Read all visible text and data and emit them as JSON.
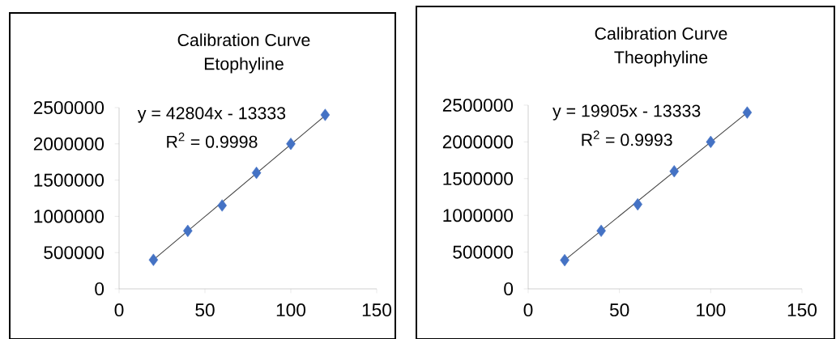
{
  "chart_data": [
    {
      "type": "scatter",
      "title": "Calibration Curve",
      "subtitle": "Etophyline",
      "marker": "diamond",
      "grid": false,
      "xlim": [
        0,
        150
      ],
      "xticks": [
        0,
        50,
        100,
        150
      ],
      "ylim": [
        0,
        2500000
      ],
      "yticks": [
        0,
        500000,
        1000000,
        1500000,
        2000000,
        2500000
      ],
      "annotations": [
        "y = 42804x - 13333",
        "R$^{2}$ = 0.9998"
      ],
      "series": [
        {
          "color": "#4472c4",
          "x": [
            20,
            40,
            60,
            80,
            100,
            120
          ],
          "values": [
            400000,
            800000,
            1150000,
            1600000,
            2000000,
            2400000
          ]
        },
        {
          "type": "line",
          "marker": "none",
          "color": "#404040",
          "x": [
            20,
            120
          ],
          "values": [
            400000,
            2390000
          ]
        }
      ]
    },
    {
      "type": "scatter",
      "title": "Calibration Curve",
      "subtitle": "Theophyline",
      "marker": "diamond",
      "grid": false,
      "xlim": [
        0,
        150
      ],
      "xticks": [
        0,
        50,
        100,
        150
      ],
      "ylim": [
        0,
        2500000
      ],
      "yticks": [
        0,
        500000,
        1000000,
        1500000,
        2000000,
        2500000
      ],
      "annotations": [
        "y = 19905x - 13333",
        "R$^{2}$ = 0.9993"
      ],
      "series": [
        {
          "color": "#4472c4",
          "x": [
            20,
            40,
            60,
            80,
            100,
            120
          ],
          "values": [
            390000,
            790000,
            1150000,
            1600000,
            2000000,
            2400000
          ]
        },
        {
          "type": "line",
          "marker": "none",
          "color": "#404040",
          "x": [
            20,
            120
          ],
          "values": [
            390000,
            2400000
          ]
        }
      ]
    }
  ]
}
